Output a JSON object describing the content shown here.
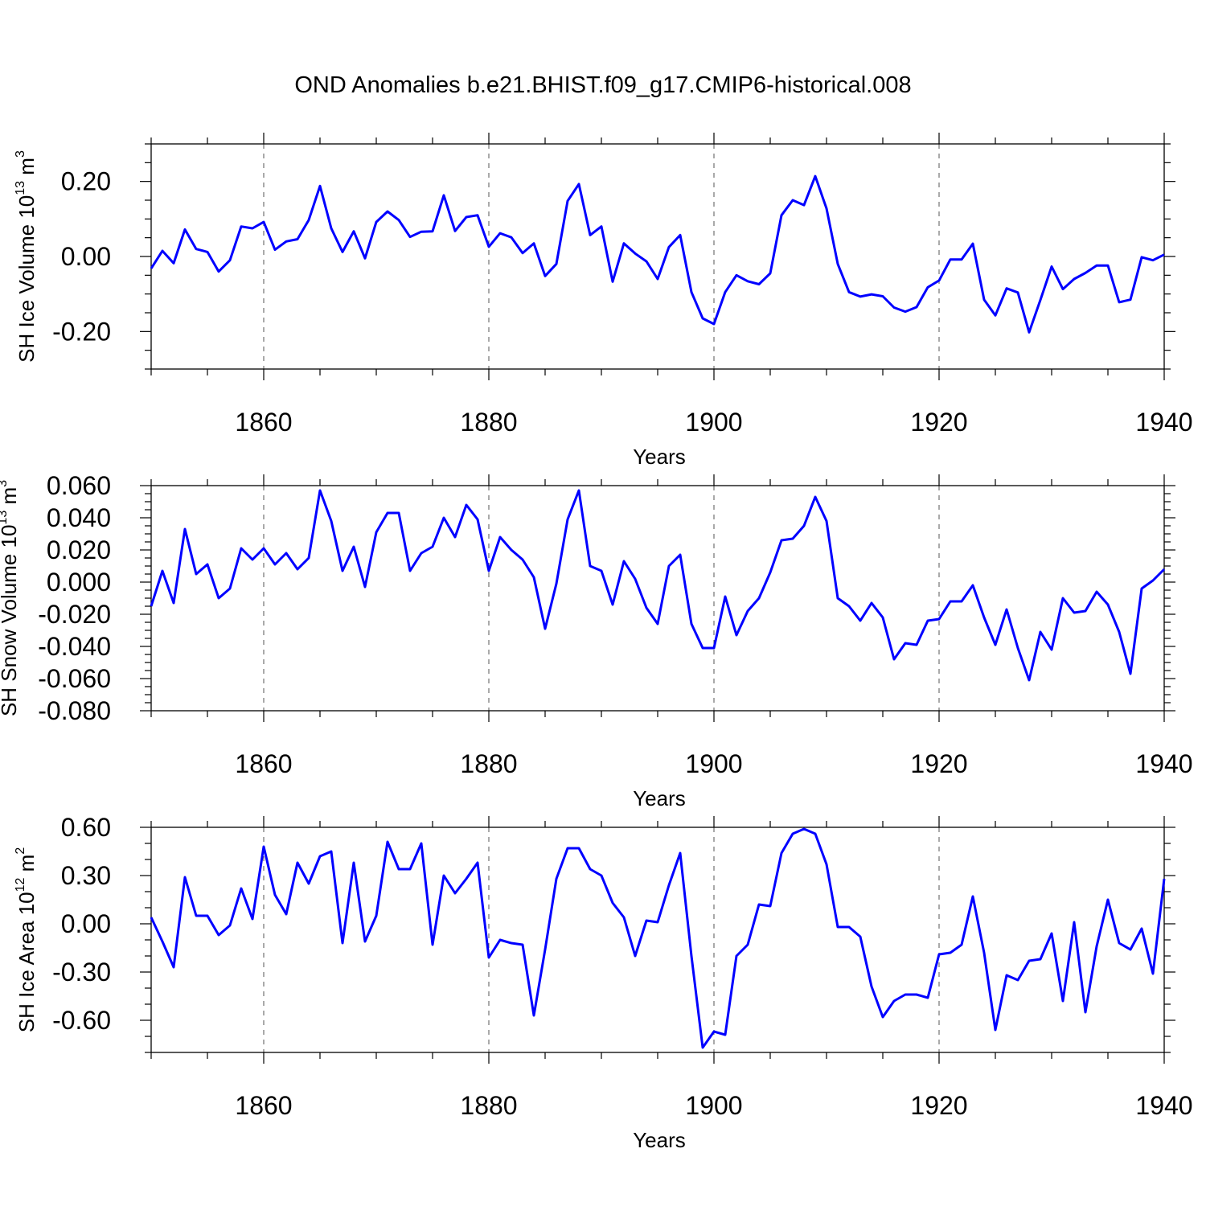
{
  "chart_data": {
    "title": "OND Anomalies b.e21.BHIST.f09_g17.CMIP6-historical.008",
    "type": "line",
    "x_start": 1850,
    "x_step": 1,
    "xlim": [
      1850,
      1940
    ],
    "xticks": [
      1860,
      1880,
      1900,
      1920,
      1940
    ],
    "xtick_labels": [
      "1860",
      "1880",
      "1900",
      "1920",
      "1940"
    ],
    "grid_x": [
      1860,
      1880,
      1900,
      1920
    ],
    "series_color": "#0000ff",
    "panels": [
      {
        "ylabel_main": "SH Ice Volume 10",
        "ylabel_exp": "13",
        "ylabel_unit": " m",
        "ylabel_unit_exp": "3",
        "xlabel": "Years",
        "ylim": [
          -0.3,
          0.3
        ],
        "yticks": [
          -0.2,
          0.0,
          0.2
        ],
        "ytick_labels": [
          "-0.20",
          "0.00",
          "0.20"
        ],
        "minor_step": 0.05,
        "values": [
          -0.032,
          0.015,
          -0.018,
          0.072,
          0.02,
          0.012,
          -0.04,
          -0.01,
          0.08,
          0.075,
          0.092,
          0.018,
          0.04,
          0.046,
          0.097,
          0.188,
          0.075,
          0.012,
          0.067,
          -0.005,
          0.092,
          0.12,
          0.097,
          0.052,
          0.066,
          0.067,
          0.163,
          0.068,
          0.105,
          0.11,
          0.026,
          0.062,
          0.051,
          0.009,
          0.035,
          -0.052,
          -0.02,
          0.148,
          0.193,
          0.057,
          0.08,
          -0.067,
          0.035,
          0.008,
          -0.013,
          -0.06,
          0.025,
          0.057,
          -0.095,
          -0.165,
          -0.18,
          -0.095,
          -0.05,
          -0.066,
          -0.074,
          -0.045,
          0.11,
          0.15,
          0.137,
          0.214,
          0.128,
          -0.02,
          -0.095,
          -0.107,
          -0.101,
          -0.106,
          -0.136,
          -0.147,
          -0.135,
          -0.082,
          -0.064,
          -0.008,
          -0.008,
          0.034,
          -0.115,
          -0.157,
          -0.085,
          -0.096,
          -0.202,
          -0.116,
          -0.027,
          -0.087,
          -0.06,
          -0.044,
          -0.024,
          -0.024,
          -0.122,
          -0.115,
          -0.002,
          -0.01,
          0.005
        ]
      },
      {
        "ylabel_main": "SH Snow Volume 10",
        "ylabel_exp": "13",
        "ylabel_unit": " m",
        "ylabel_unit_exp": "3",
        "xlabel": "Years",
        "ylim": [
          -0.08,
          0.06
        ],
        "yticks": [
          -0.08,
          -0.06,
          -0.04,
          -0.02,
          0.0,
          0.02,
          0.04,
          0.06
        ],
        "ytick_labels": [
          "-0.080",
          "-0.060",
          "-0.040",
          "-0.020",
          "0.000",
          "0.020",
          "0.040",
          "0.060"
        ],
        "minor_step": 0.005,
        "values": [
          -0.015,
          0.007,
          -0.013,
          0.033,
          0.005,
          0.011,
          -0.01,
          -0.004,
          0.021,
          0.014,
          0.021,
          0.011,
          0.018,
          0.008,
          0.015,
          0.057,
          0.038,
          0.007,
          0.022,
          -0.003,
          0.031,
          0.043,
          0.043,
          0.007,
          0.018,
          0.022,
          0.04,
          0.028,
          0.048,
          0.039,
          0.007,
          0.028,
          0.02,
          0.014,
          0.003,
          -0.029,
          -0.001,
          0.039,
          0.057,
          0.01,
          0.007,
          -0.014,
          0.013,
          0.002,
          -0.016,
          -0.026,
          0.01,
          0.017,
          -0.026,
          -0.041,
          -0.041,
          -0.009,
          -0.033,
          -0.018,
          -0.01,
          0.006,
          0.026,
          0.027,
          0.035,
          0.053,
          0.038,
          -0.01,
          -0.015,
          -0.024,
          -0.013,
          -0.022,
          -0.048,
          -0.038,
          -0.039,
          -0.024,
          -0.023,
          -0.012,
          -0.012,
          -0.002,
          -0.022,
          -0.039,
          -0.017,
          -0.041,
          -0.061,
          -0.031,
          -0.042,
          -0.01,
          -0.019,
          -0.018,
          -0.006,
          -0.014,
          -0.031,
          -0.057,
          -0.004,
          0.001,
          0.008
        ]
      },
      {
        "ylabel_main": "SH Ice Area 10",
        "ylabel_exp": "12",
        "ylabel_unit": " m",
        "ylabel_unit_exp": "2",
        "xlabel": "Years",
        "ylim": [
          -0.8,
          0.6
        ],
        "yticks": [
          -0.6,
          -0.3,
          0.0,
          0.3,
          0.6
        ],
        "ytick_labels": [
          "-0.60",
          "-0.30",
          "0.00",
          "0.30",
          "0.60"
        ],
        "minor_step": 0.1,
        "values": [
          0.04,
          -0.11,
          -0.27,
          0.29,
          0.05,
          0.05,
          -0.07,
          -0.01,
          0.22,
          0.03,
          0.48,
          0.18,
          0.06,
          0.38,
          0.25,
          0.42,
          0.45,
          -0.12,
          0.38,
          -0.11,
          0.05,
          0.51,
          0.34,
          0.34,
          0.5,
          -0.13,
          0.3,
          0.19,
          0.28,
          0.38,
          -0.21,
          -0.1,
          -0.12,
          -0.13,
          -0.57,
          -0.16,
          0.28,
          0.47,
          0.47,
          0.34,
          0.3,
          0.13,
          0.04,
          -0.2,
          0.02,
          0.01,
          0.24,
          0.44,
          -0.2,
          -0.77,
          -0.67,
          -0.69,
          -0.2,
          -0.13,
          0.12,
          0.11,
          0.44,
          0.56,
          0.59,
          0.56,
          0.37,
          -0.02,
          -0.02,
          -0.08,
          -0.39,
          -0.58,
          -0.48,
          -0.44,
          -0.44,
          -0.46,
          -0.19,
          -0.18,
          -0.13,
          0.17,
          -0.18,
          -0.66,
          -0.32,
          -0.35,
          -0.23,
          -0.22,
          -0.06,
          -0.48,
          0.01,
          -0.55,
          -0.14,
          0.15,
          -0.12,
          -0.16,
          -0.03,
          -0.31,
          0.28
        ]
      }
    ]
  }
}
